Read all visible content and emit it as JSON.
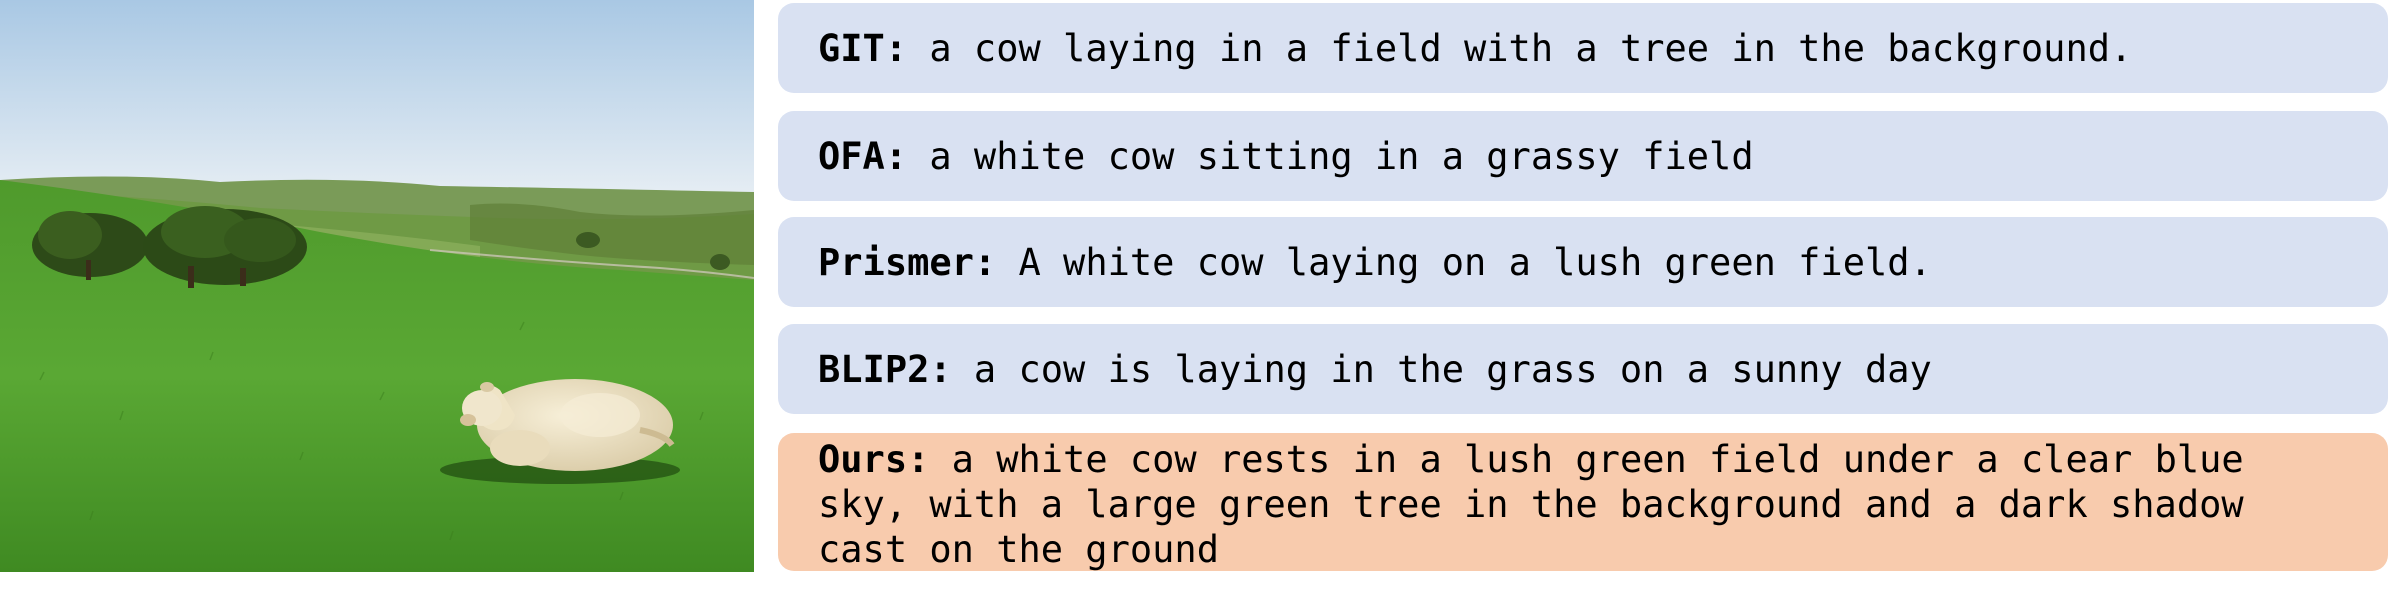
{
  "image": {
    "subject": "white cow lying on green grass with trees and hills under blue sky"
  },
  "colors": {
    "baseline_bg": "#d9e1f2",
    "ours_bg": "#f8cbad"
  },
  "captions": [
    {
      "model": "GIT:",
      "text": " a cow laying in a field with a tree in the background."
    },
    {
      "model": "OFA:",
      "text": " a white cow sitting in a grassy field"
    },
    {
      "model": "Prismer:",
      "text": " A white cow laying on a lush green field."
    },
    {
      "model": "BLIP2:",
      "text": " a cow is laying in the grass on a sunny day"
    },
    {
      "model": "Ours:",
      "text": " a white cow rests in a lush green field under a clear blue sky, with a large green tree in the background and a dark shadow cast on the ground"
    }
  ]
}
